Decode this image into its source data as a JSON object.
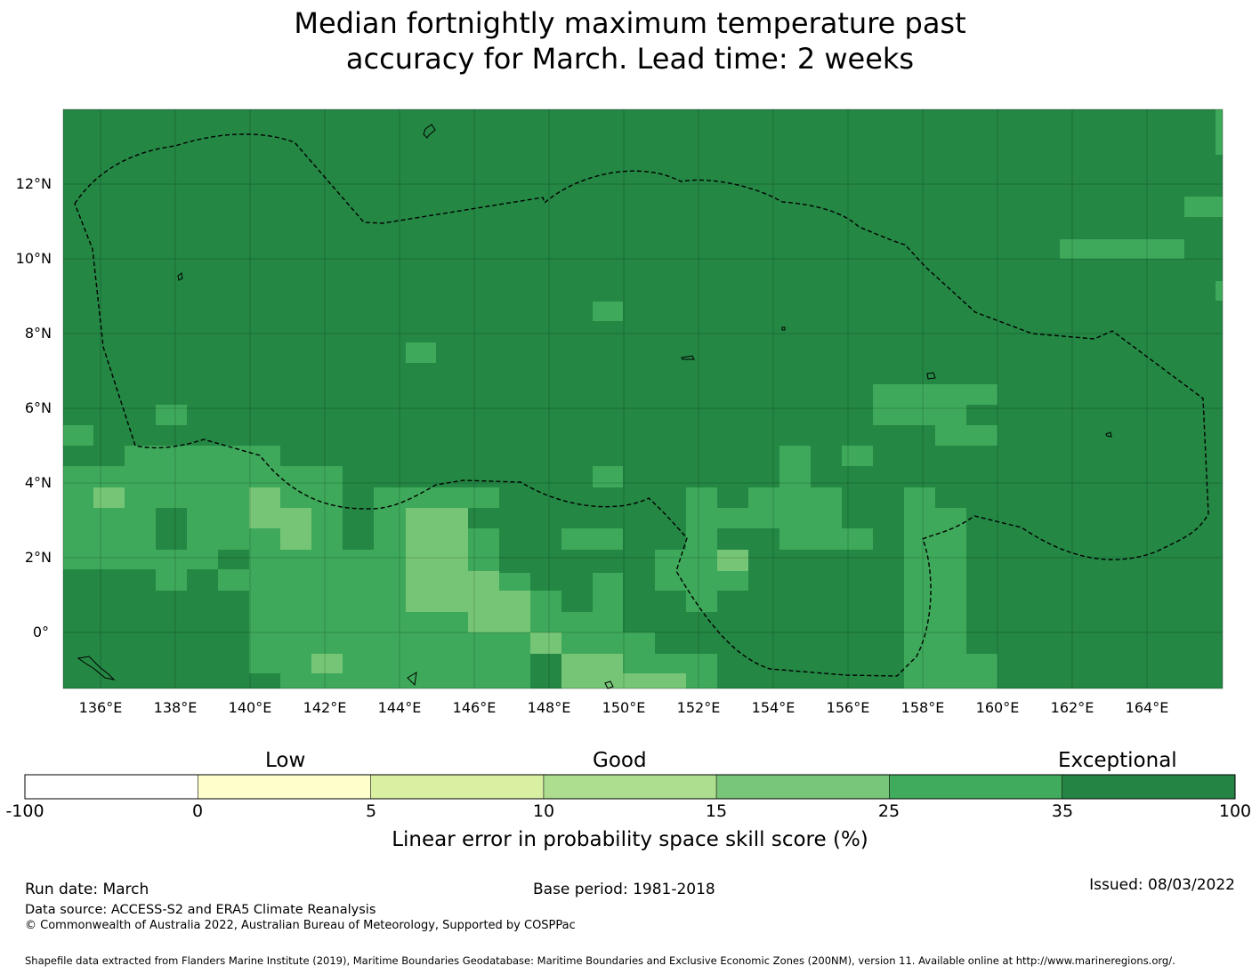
{
  "title": {
    "line1": "Median fortnightly maximum temperature past",
    "line2": "accuracy for March. Lead time: 2 weeks"
  },
  "map": {
    "lon_ticks": [
      "136°E",
      "138°E",
      "140°E",
      "142°E",
      "144°E",
      "146°E",
      "148°E",
      "150°E",
      "152°E",
      "154°E",
      "156°E",
      "158°E",
      "160°E",
      "162°E",
      "164°E"
    ],
    "lat_ticks": [
      "12°N",
      "10°N",
      "8°N",
      "6°N",
      "4°N",
      "2°N",
      "0°"
    ],
    "extent": {
      "lon_min": 134.0,
      "lon_max": 166.0,
      "lat_min": -1.5,
      "lat_max": 14.0
    },
    "grid_lines": true,
    "eez_boundary": "dashed",
    "colors": {
      "background": "#248744",
      "class_25_35": "#3ea95a",
      "class_15_25": "#76c576",
      "class_10_15": "#acdc8d"
    }
  },
  "colorbar": {
    "category_labels": [
      "Low",
      "Good",
      "Exceptional"
    ],
    "ticks": [
      "-100",
      "0",
      "5",
      "10",
      "15",
      "25",
      "35",
      "100"
    ],
    "colors": [
      "#ffffff",
      "#ffffcc",
      "#d9f0a3",
      "#addd8e",
      "#78c679",
      "#41ab5d",
      "#238443"
    ],
    "label": "Linear error in probability space skill score (%)"
  },
  "footer": {
    "run_date": "Run date: March",
    "base_period": "Base period: 1981-2018",
    "issued": "Issued: 08/03/2022",
    "data_source": "Data source: ACCESS-S2 and ERA5 Climate Reanalysis",
    "copyright": "© Commonwealth of Australia 2022, Australian Bureau of Meteorology, Supported by COSPPac",
    "shapefile": "Shapefile data extracted from Flanders Marine Institute (2019), Maritime Boundaries Geodatabase: Maritime Boundaries and Exclusive Economic Zones (200NM), version 11. Available online at http://www.marineregions.org/."
  }
}
